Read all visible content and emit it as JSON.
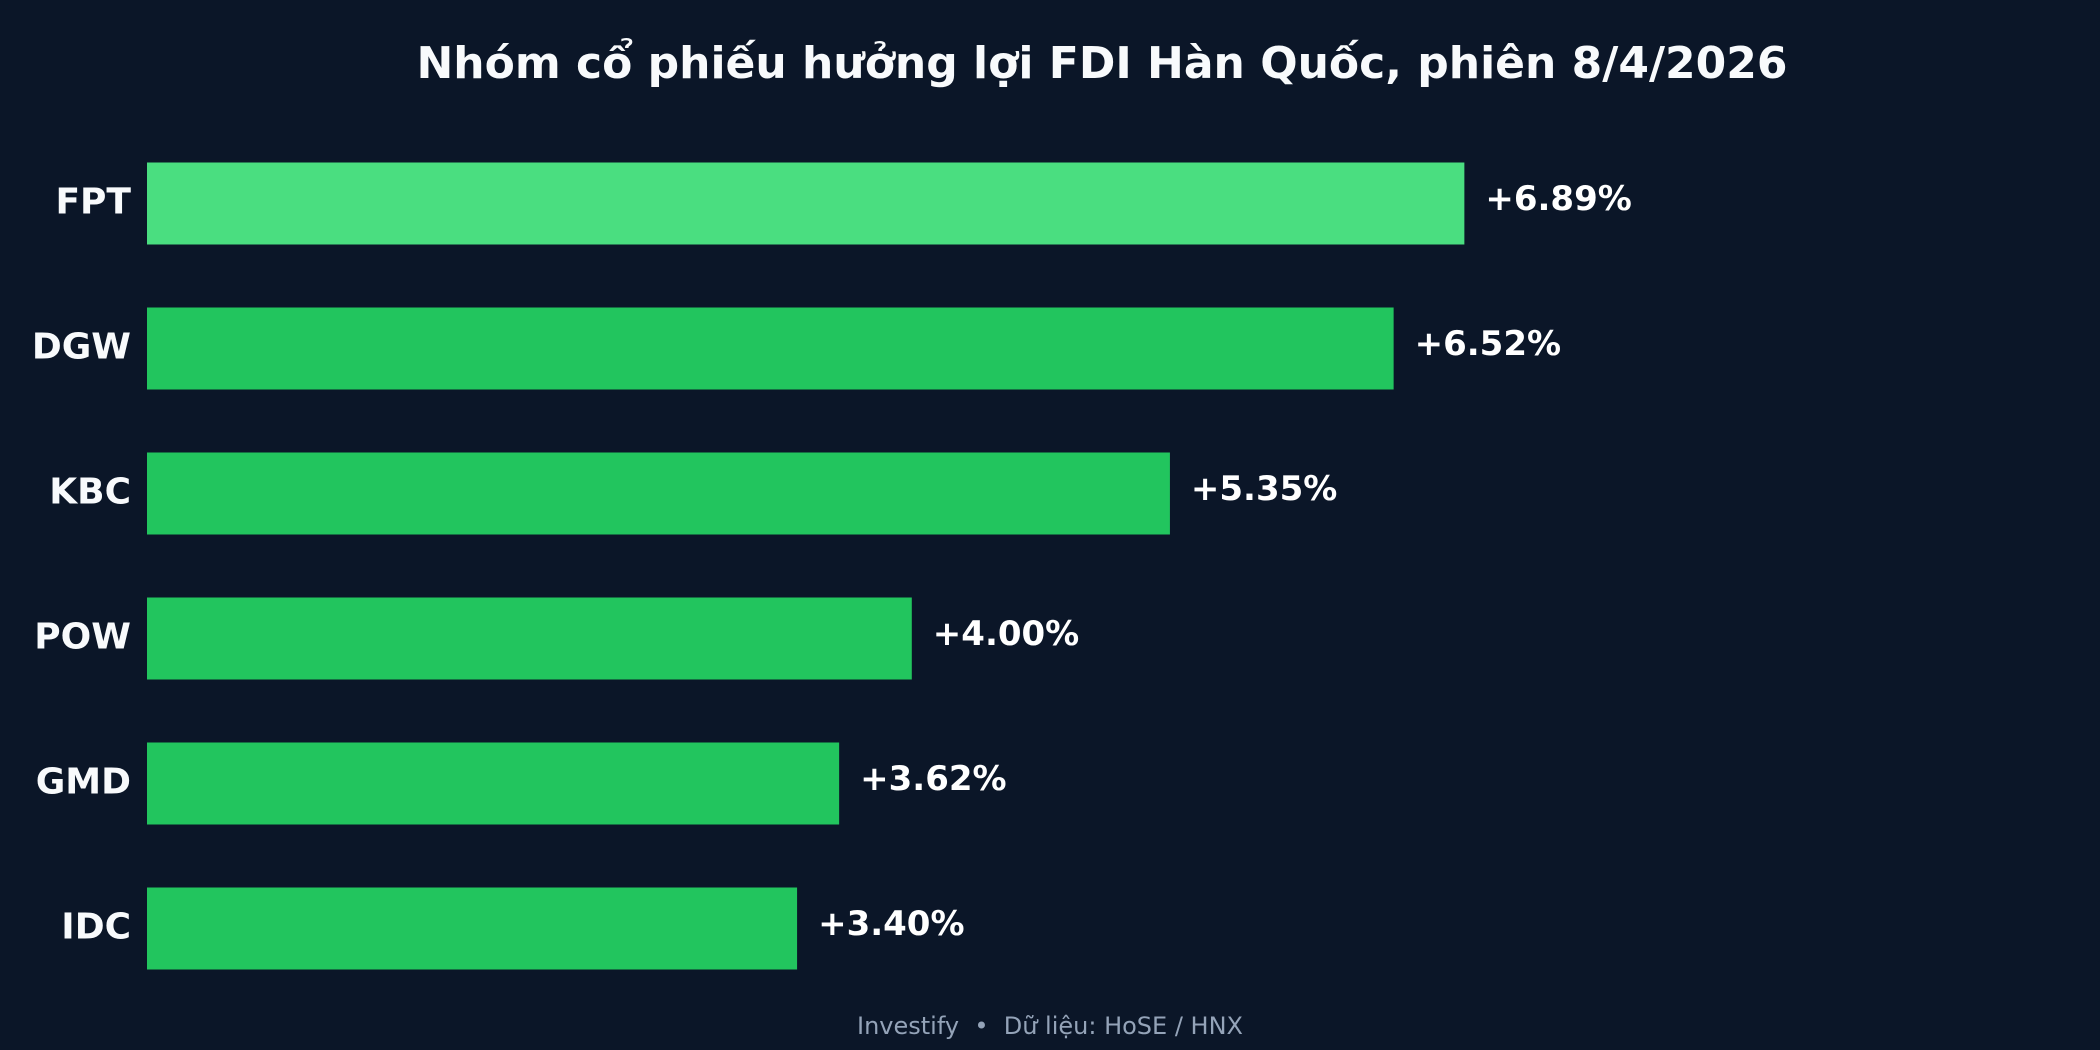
{
  "chart_data": {
    "type": "bar",
    "orientation": "horizontal",
    "title": "Nhóm cổ phiếu hưởng lợi FDI Hàn Quốc, phiên 8/4/2026",
    "categories": [
      "FPT",
      "DGW",
      "KBC",
      "POW",
      "GMD",
      "IDC"
    ],
    "values": [
      6.89,
      6.52,
      5.35,
      4.0,
      3.62,
      3.4
    ],
    "value_labels": [
      "+6.89%",
      "+6.52%",
      "+5.35%",
      "+4.00%",
      "+3.62%",
      "+3.40%"
    ],
    "colors": [
      "#4ade80",
      "#22c55e",
      "#22c55e",
      "#22c55e",
      "#22c55e",
      "#22c55e"
    ],
    "xlim": [
      0,
      10
    ],
    "source": "Investify  •  Dữ liệu: HoSE / HNX"
  }
}
